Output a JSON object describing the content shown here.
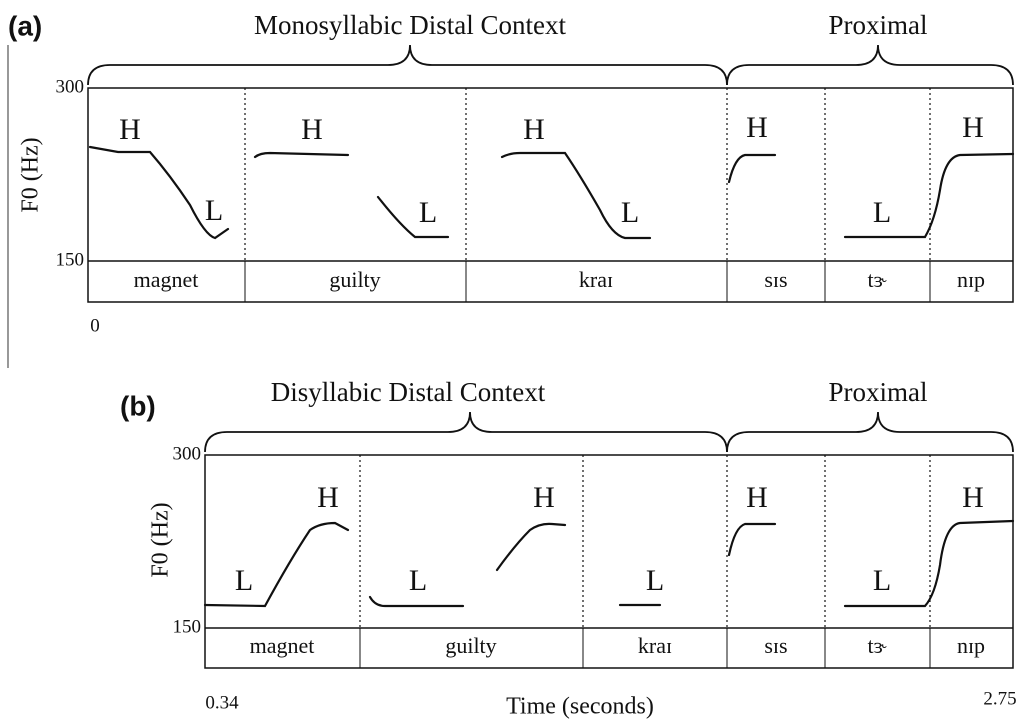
{
  "panels": [
    {
      "label": "(a)",
      "context": "Monosyllabic Distal Context",
      "proximal": "Proximal",
      "y_axis_label": "F0 (Hz)",
      "y_top": "300",
      "y_bottom": "150",
      "time_start": "0",
      "words": [
        "magnet",
        "guilty",
        "kraɪ",
        "sɪs",
        "tɝ",
        "nɪp"
      ],
      "tones": [
        "H",
        "L",
        "H",
        "L",
        "H",
        "L",
        "H",
        "L",
        "H"
      ]
    },
    {
      "label": "(b)",
      "context": "Disyllabic Distal Context",
      "proximal": "Proximal",
      "y_axis_label": "F0 (Hz)",
      "y_top": "300",
      "y_bottom": "150",
      "time_start": "0.34",
      "time_end": "2.75",
      "x_axis_label": "Time (seconds)",
      "words": [
        "magnet",
        "guilty",
        "kraɪ",
        "sɪs",
        "tɝ",
        "nɪp"
      ],
      "tones": [
        "L",
        "H",
        "L",
        "H",
        "L",
        "H",
        "L",
        "H"
      ]
    }
  ]
}
